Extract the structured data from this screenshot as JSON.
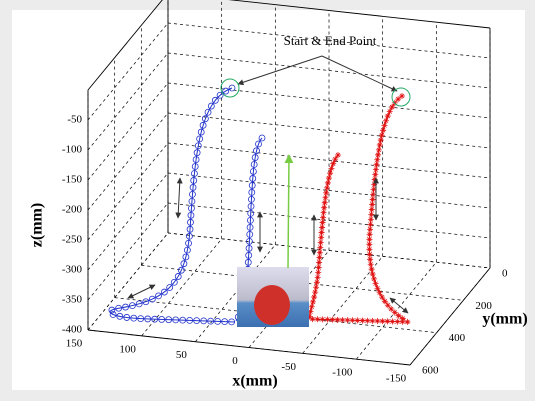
{
  "chart_data": {
    "type": "plot3d",
    "annotation": "Start & End Point",
    "x_label": "x(mm)",
    "y_label": "y(mm)",
    "z_label": "z(mm)",
    "xlim": [
      150,
      -150
    ],
    "xticks": [
      150,
      100,
      50,
      0,
      -50,
      -100,
      -150
    ],
    "ylim": [
      0,
      600
    ],
    "yticks": [
      0,
      200,
      400,
      600
    ],
    "zlim": [
      -400,
      0
    ],
    "zticks": [
      -50,
      -100,
      -150,
      -200,
      -250,
      -300,
      -350,
      -400
    ],
    "grid": true
  }
}
